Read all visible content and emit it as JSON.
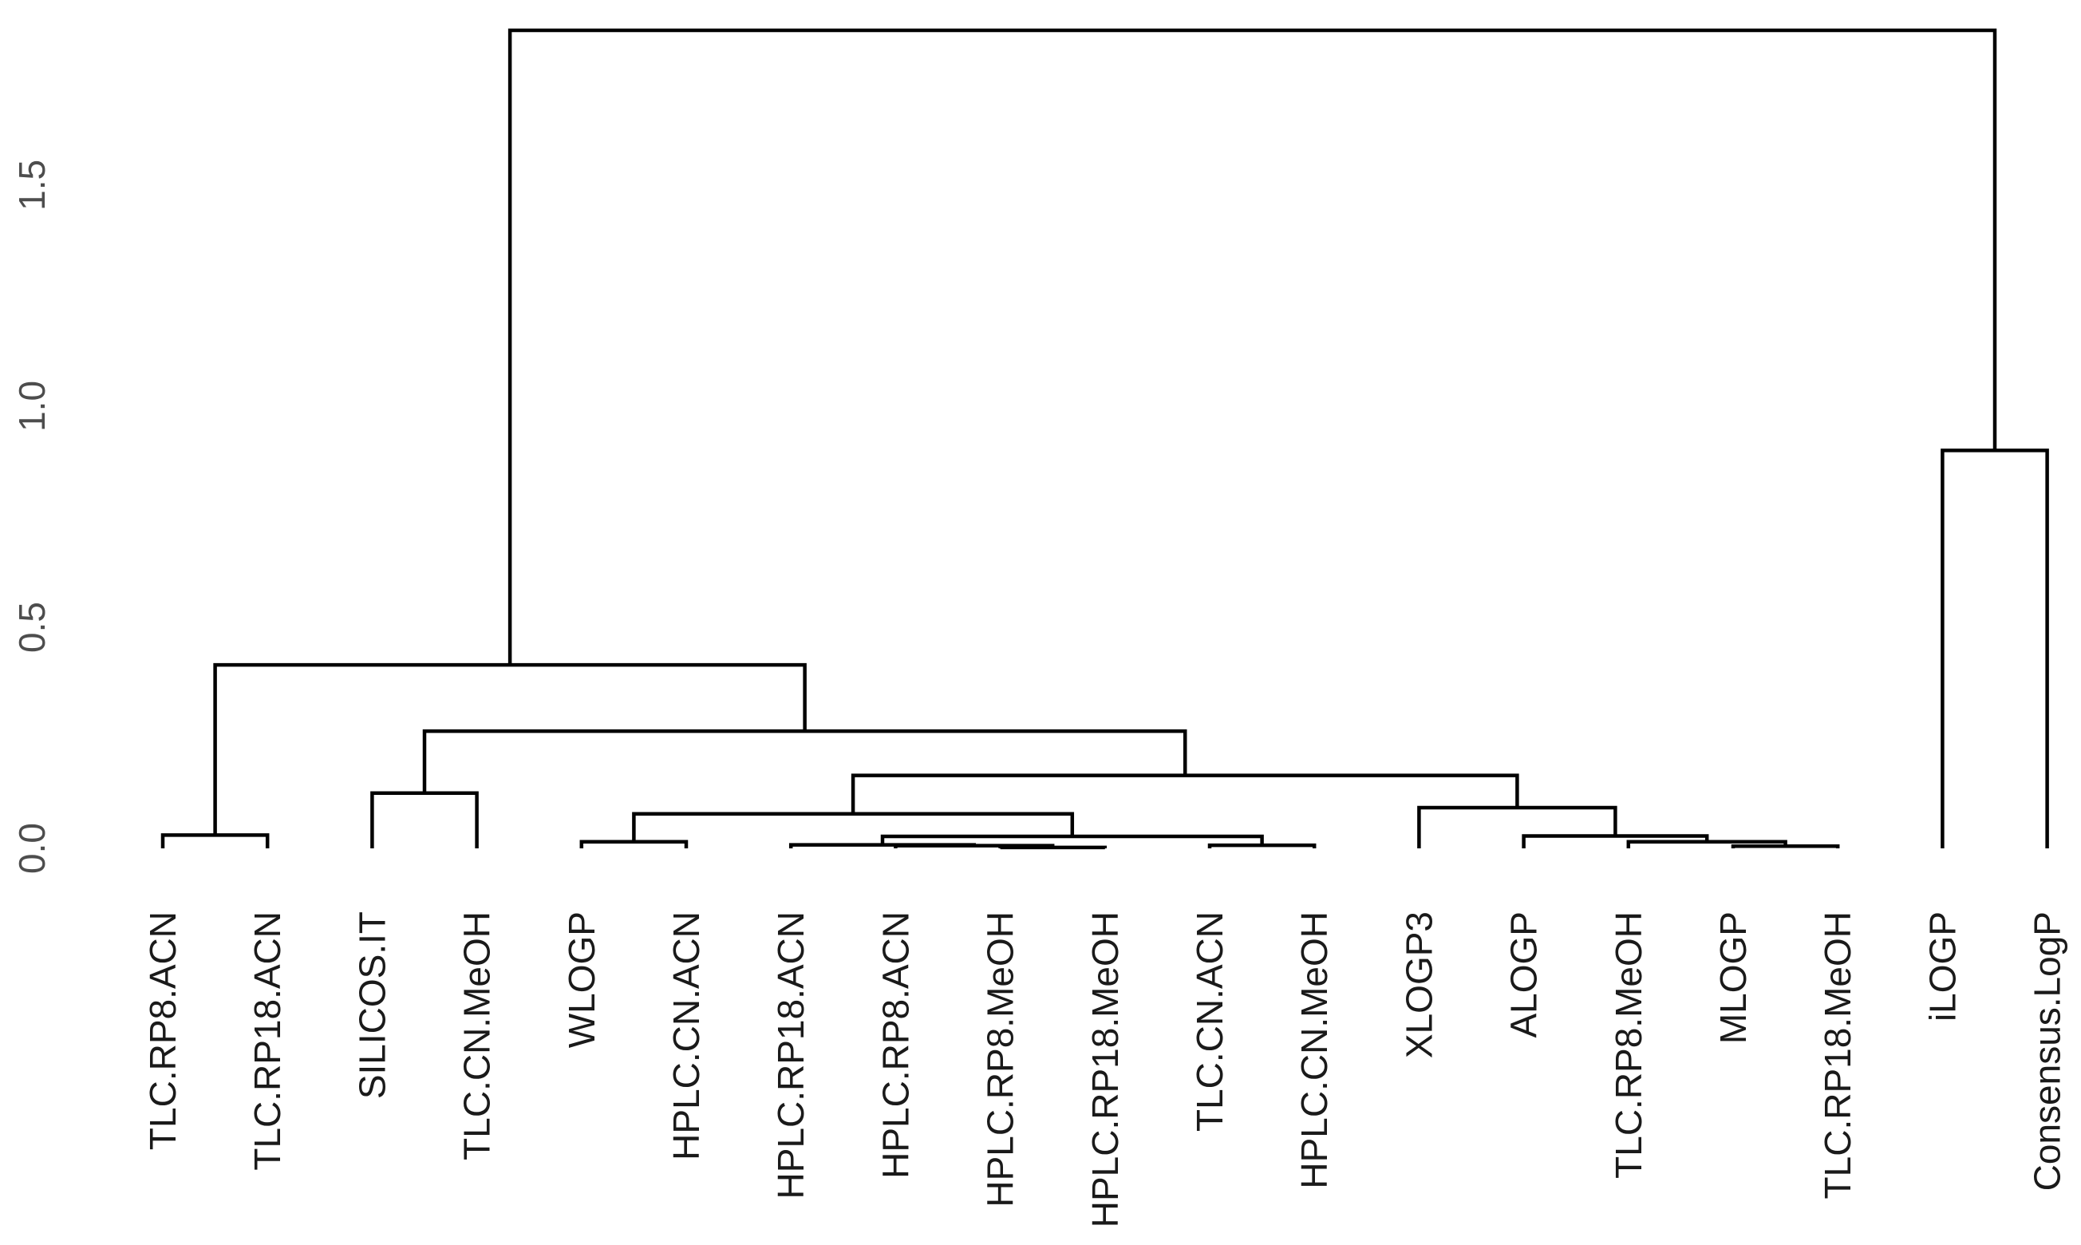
{
  "chart_data": {
    "type": "dendrogram",
    "title": "",
    "xlabel": "",
    "ylabel": "",
    "ylim": [
      0,
      1.85
    ],
    "yticks": [
      0.0,
      0.5,
      1.0,
      1.5
    ],
    "ytick_labels": [
      "0.0",
      "0.5",
      "1.0",
      "1.5"
    ],
    "leaves": [
      "TLC.RP8.ACN",
      "TLC.RP18.ACN",
      "SILICOS.IT",
      "TLC.CN.MeOH",
      "WLOGP",
      "HPLC.CN.ACN",
      "HPLC.RP18.ACN",
      "HPLC.RP8.ACN",
      "HPLC.RP8.MeOH",
      "HPLC.RP18.MeOH",
      "TLC.CN.ACN",
      "HPLC.CN.MeOH",
      "XLOGP3",
      "ALOGP",
      "TLC.RP8.MeOH",
      "MLOGP",
      "TLC.RP18.MeOH",
      "iLOGP",
      "Consensus.LogP"
    ],
    "merges": [
      {
        "left": "TLC.RP8.ACN",
        "right": "TLC.RP18.ACN",
        "height": 0.03
      },
      {
        "left": "SILICOS.IT",
        "right": "TLC.CN.MeOH",
        "height": 0.125
      },
      {
        "left": "WLOGP",
        "right": "HPLC.CN.ACN",
        "height": 0.015
      },
      {
        "left": "HPLC.RP8.MeOH",
        "right": "HPLC.RP18.MeOH",
        "height": 0.002
      },
      {
        "left": "HPLC.RP8.ACN",
        "right": "[HPLC.RP8.MeOH,HPLC.RP18.MeOH]",
        "height": 0.006
      },
      {
        "left": "HPLC.RP18.ACN",
        "right": "[HPLC.RP8.ACN,...]",
        "height": 0.008
      },
      {
        "left": "TLC.CN.ACN",
        "right": "HPLC.CN.MeOH",
        "height": 0.007
      },
      {
        "left": "[HPLC.RP18.ACN,...]",
        "right": "[TLC.CN.ACN,HPLC.CN.MeOH]",
        "height": 0.027
      },
      {
        "left": "[WLOGP,HPLC.CN.ACN]",
        "right": "[HPLC.RP18.ACN,...,HPLC.CN.MeOH]",
        "height": 0.078
      },
      {
        "left": "MLOGP",
        "right": "TLC.RP18.MeOH",
        "height": 0.005
      },
      {
        "left": "TLC.RP8.MeOH",
        "right": "[MLOGP,TLC.RP18.MeOH]",
        "height": 0.015
      },
      {
        "left": "ALOGP",
        "right": "[TLC.RP8.MeOH,...]",
        "height": 0.028
      },
      {
        "left": "XLOGP3",
        "right": "[ALOGP,...]",
        "height": 0.092
      },
      {
        "left": "[WLOGP,...]",
        "right": "[XLOGP3,...]",
        "height": 0.165
      },
      {
        "left": "[SILICOS.IT,TLC.CN.MeOH]",
        "right": "[WLOGP,...,TLC.RP18.MeOH]",
        "height": 0.265
      },
      {
        "left": "[TLC.RP8.ACN,TLC.RP18.ACN]",
        "right": "[SILICOS.IT,...]",
        "height": 0.415
      },
      {
        "left": "iLOGP",
        "right": "Consensus.LogP",
        "height": 0.9
      },
      {
        "left": "[TLC.RP8.ACN,...]",
        "right": "[iLOGP,Consensus.LogP]",
        "height": 1.85
      }
    ]
  }
}
